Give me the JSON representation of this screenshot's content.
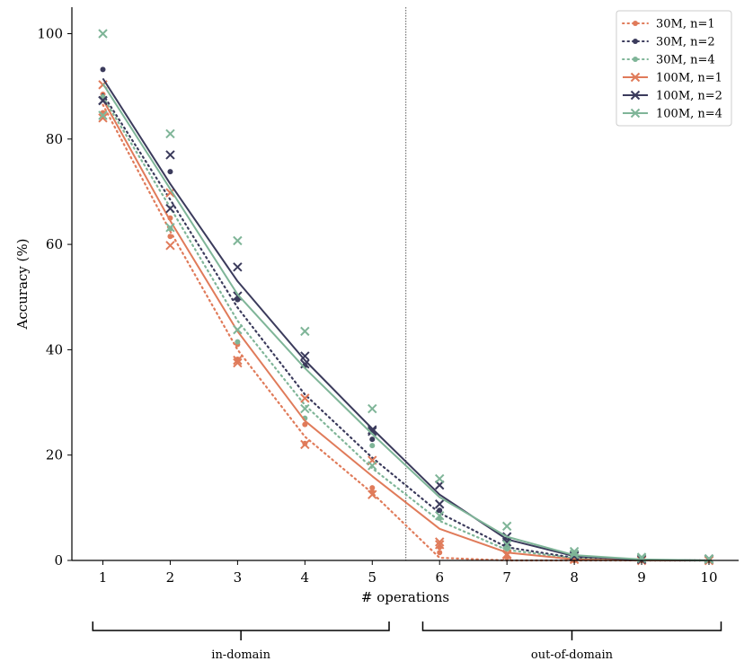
{
  "chart_data": {
    "type": "line",
    "title": "",
    "xlabel": "# operations",
    "ylabel": "Accuracy (%)",
    "x": [
      1,
      2,
      3,
      4,
      5,
      6,
      7,
      8,
      9,
      10
    ],
    "x_ticks": [
      "1",
      "2",
      "3",
      "4",
      "5",
      "6",
      "7",
      "8",
      "9",
      "10"
    ],
    "y_ticks": [
      "0",
      "20",
      "40",
      "60",
      "80",
      "100"
    ],
    "xlim": [
      0.5,
      10.45
    ],
    "ylim": [
      0,
      105
    ],
    "grid": false,
    "legend_position": "top-right",
    "domain_split": 5.5,
    "regions": [
      {
        "label": "in-domain",
        "range": [
          0.85,
          5.25
        ]
      },
      {
        "label": "out-of-domain",
        "range": [
          5.75,
          10.18
        ]
      }
    ],
    "colors": {
      "n1": "#e07b5a",
      "n2": "#3b3b5c",
      "n4": "#7fb598"
    },
    "series": [
      {
        "name": "30M, n=1",
        "model": "30M",
        "color": "#e07b5a",
        "style": "dotted",
        "marker": "dot",
        "values": [
          86.5,
          62.5,
          40.0,
          23.5,
          12.8,
          0.5,
          0.0,
          0.0,
          0.0,
          0.0
        ],
        "runs": [
          [
            85.0,
            61.5,
            38.2,
            22.2,
            13.8,
            1.5,
            0.6,
            0.0,
            0.0,
            0.0
          ],
          [
            88.5,
            65.0,
            41.0,
            25.8,
            13.0,
            2.5,
            0.7,
            0.0,
            0.0,
            0.0
          ]
        ]
      },
      {
        "name": "30M, n=2",
        "model": "30M",
        "color": "#3b3b5c",
        "style": "dotted",
        "marker": "dot",
        "values": [
          88.5,
          68.5,
          48.0,
          31.5,
          19.5,
          9.0,
          2.5,
          0.5,
          0.0,
          0.0
        ],
        "runs": [
          [
            93.2,
            73.8,
            49.5,
            37.0,
            23.0,
            9.5,
            3.0,
            0.6,
            0.0,
            0.0
          ]
        ]
      },
      {
        "name": "30M, n=4",
        "model": "30M",
        "color": "#7fb598",
        "style": "dotted",
        "marker": "dot",
        "values": [
          88.0,
          67.0,
          45.5,
          29.5,
          17.5,
          7.5,
          2.0,
          0.4,
          0.0,
          0.0
        ],
        "runs": [
          [
            88.0,
            63.0,
            41.5,
            27.0,
            21.8,
            8.0,
            2.2,
            0.5,
            0.0,
            0.0
          ]
        ]
      },
      {
        "name": "100M, n=1",
        "model": "100M",
        "color": "#e07b5a",
        "style": "solid",
        "marker": "x",
        "values": [
          87.5,
          64.5,
          43.5,
          26.5,
          16.0,
          6.0,
          1.5,
          0.2,
          0.0,
          0.0
        ],
        "runs": [
          [
            90.3,
            69.8,
            37.5,
            22.0,
            12.5,
            3.5,
            1.2,
            0.2,
            0.0,
            0.0
          ],
          [
            84.0,
            59.8,
            38.0,
            30.8,
            19.0,
            3.0,
            1.0,
            0.2,
            0.0,
            0.0
          ]
        ]
      },
      {
        "name": "100M, n=2",
        "model": "100M",
        "color": "#3b3b5c",
        "style": "solid",
        "marker": "x",
        "values": [
          91.5,
          71.5,
          53.0,
          38.0,
          25.0,
          12.5,
          4.0,
          0.8,
          0.1,
          0.0
        ],
        "runs": [
          [
            87.3,
            77.0,
            55.7,
            38.8,
            24.8,
            10.7,
            4.5,
            1.0,
            0.2,
            0.3
          ],
          [
            87.3,
            66.8,
            50.2,
            37.3,
            24.5,
            14.3,
            3.5,
            0.8,
            0.2,
            0.2
          ]
        ]
      },
      {
        "name": "100M, n=4",
        "model": "100M",
        "color": "#7fb598",
        "style": "solid",
        "marker": "x",
        "values": [
          90.5,
          70.5,
          50.5,
          36.5,
          24.0,
          12.0,
          4.5,
          1.0,
          0.2,
          0.0
        ],
        "runs": [
          [
            100.0,
            81.0,
            60.7,
            43.5,
            28.8,
            15.5,
            6.5,
            1.7,
            0.6,
            0.3
          ],
          [
            84.5,
            63.2,
            43.8,
            28.8,
            18.0,
            8.5,
            3.0,
            1.2,
            0.4,
            0.2
          ]
        ]
      }
    ]
  }
}
